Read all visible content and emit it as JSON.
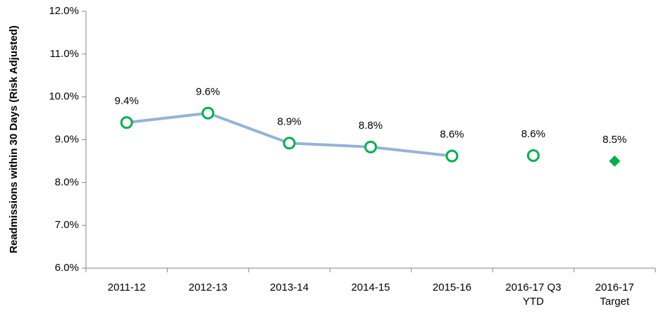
{
  "chart_data": {
    "type": "line",
    "y_label": "Readmissions within 30 Days (Risk Adjusted)",
    "categories": [
      "2011-12",
      "2012-13",
      "2013-14",
      "2014-15",
      "2015-16",
      "2016-17 Q3\nYTD",
      "2016-17\nTarget"
    ],
    "series": [
      {
        "color": "#95b3d7",
        "line": true,
        "marker": "circle",
        "marker_color": "#00b050",
        "values": [
          9.4,
          9.62,
          8.92,
          8.83,
          8.62,
          null,
          null
        ],
        "value_labels": [
          "9.4%",
          "9.6%",
          "8.9%",
          "8.8%",
          "8.6%",
          null,
          null
        ]
      },
      {
        "line": false,
        "marker": "circle",
        "marker_color": "#00b050",
        "values": [
          null,
          null,
          null,
          null,
          null,
          8.63,
          null
        ],
        "value_labels": [
          null,
          null,
          null,
          null,
          null,
          "8.6%",
          null
        ]
      },
      {
        "line": false,
        "marker": "diamond",
        "marker_color": "#00b050",
        "values": [
          null,
          null,
          null,
          null,
          null,
          null,
          8.5
        ],
        "value_labels": [
          null,
          null,
          null,
          null,
          null,
          null,
          "8.5%"
        ]
      }
    ],
    "ylim": [
      6,
      12
    ],
    "yticks": [
      {
        "value": 6,
        "label": "6.0%"
      },
      {
        "value": 7,
        "label": "7.0%"
      },
      {
        "value": 8,
        "label": "8.0%"
      },
      {
        "value": 9,
        "label": "9.0%"
      },
      {
        "value": 10,
        "label": "10.0%"
      },
      {
        "value": 11,
        "label": "11.0%"
      },
      {
        "value": 12,
        "label": "12.0%"
      }
    ],
    "grid": false
  }
}
